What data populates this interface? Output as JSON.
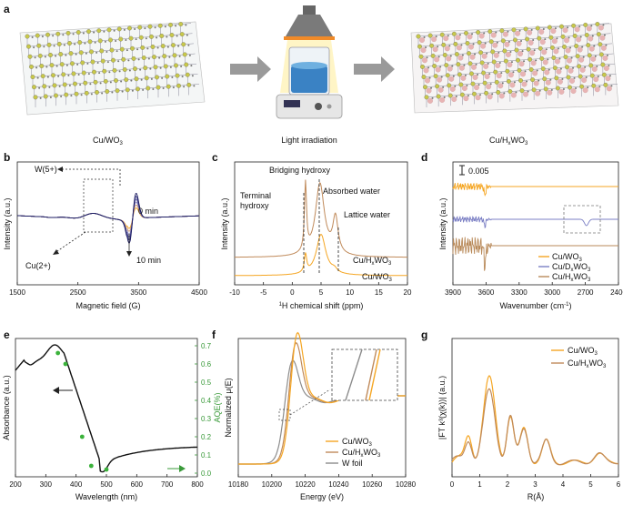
{
  "panels": {
    "a": {
      "label": "a",
      "left_caption": "Cu/WO",
      "left_caption_sub": "3",
      "middle_caption": "Light irradiation",
      "right_caption": "Cu/H",
      "right_caption_sub1": "x",
      "right_caption_mid": "WO",
      "right_caption_sub2": "3"
    },
    "b": {
      "label": "b",
      "xlabel": "Magnetic field (G)",
      "ylabel": "Intensity (a.u.)",
      "xticks": [
        "1500",
        "2500",
        "3500",
        "4500"
      ],
      "annot_w5": "W(5+)",
      "annot_cu2": "Cu(2+)",
      "annot_0min": "0 min",
      "annot_10min": "10 min"
    },
    "c": {
      "label": "c",
      "xlabel": "H chemical shift (ppm)",
      "xlabel_sup": "1",
      "ylabel": "Intensity (a.u.)",
      "xticks": [
        "-10",
        "-5",
        "0",
        "5",
        "10",
        "15",
        "20"
      ],
      "annot_bridging": "Bridging hydroxy",
      "annot_terminal1": "Terminal",
      "annot_terminal2": "hydroxy",
      "annot_absorbed": "Absorbed water",
      "annot_lattice": "Lattice water",
      "curve_hx": "Cu/H",
      "curve_hx_sub1": "x",
      "curve_hx_mid": "WO",
      "curve_hx_sub2": "3",
      "curve_wo": "Cu/WO",
      "curve_wo_sub": "3"
    },
    "d": {
      "label": "d",
      "xlabel": "Wavenumber (cm",
      "xlabel_sup": "-1",
      "xlabel_end": ")",
      "ylabel": "Intensity (a.u.)",
      "xticks": [
        "3900",
        "3600",
        "3300",
        "3000",
        "2700",
        "2400"
      ],
      "scale_bar": "0.005",
      "legend": [
        {
          "a": "Cu/WO",
          "sub": "3",
          "b": "",
          "sub2": "",
          "color": "#f5a623"
        },
        {
          "a": "Cu/D",
          "sub": "x",
          "b": "WO",
          "sub2": "3",
          "color": "#7b7fc4"
        },
        {
          "a": "Cu/H",
          "sub": "x",
          "b": "WO",
          "sub2": "3",
          "color": "#b98a5a"
        }
      ]
    },
    "e": {
      "label": "e",
      "xlabel": "Wavelength (nm)",
      "ylabel_left": "Absorbance (a.u.)",
      "ylabel_right": "AQE(%)",
      "xticks": [
        "200",
        "300",
        "400",
        "500",
        "600",
        "700",
        "800"
      ],
      "yticks_right": [
        "0.0",
        "0.1",
        "0.2",
        "0.3",
        "0.4",
        "0.5",
        "0.6",
        "0.7"
      ],
      "aqe_points": [
        {
          "wavelength": 340,
          "aqe": 0.66
        },
        {
          "wavelength": 365,
          "aqe": 0.6
        },
        {
          "wavelength": 420,
          "aqe": 0.2
        },
        {
          "wavelength": 450,
          "aqe": 0.04
        },
        {
          "wavelength": 500,
          "aqe": 0.02
        }
      ]
    },
    "f": {
      "label": "f",
      "xlabel": "Energy (eV)",
      "ylabel": "Normalized μ(E)",
      "xticks": [
        "10180",
        "10200",
        "10220",
        "10240",
        "10260",
        "10280"
      ],
      "legend": [
        {
          "a": "Cu/WO",
          "sub": "3",
          "b": "",
          "sub2": "",
          "color": "#f5a623"
        },
        {
          "a": "Cu/H",
          "sub": "x",
          "b": "WO",
          "sub2": "3",
          "color": "#c08a5a"
        },
        {
          "a": "W foil",
          "sub": "",
          "b": "",
          "sub2": "",
          "color": "#8c8c8c"
        }
      ]
    },
    "g": {
      "label": "g",
      "xlabel": "R(Å)",
      "ylabel": "|FT k³(χ(k))| (a.u.)",
      "xticks": [
        "0",
        "1",
        "2",
        "3",
        "4",
        "5",
        "6"
      ],
      "legend": [
        {
          "a": "Cu/WO",
          "sub": "3",
          "b": "",
          "sub2": "",
          "color": "#f5a623"
        },
        {
          "a": "Cu/H",
          "sub": "x",
          "b": "WO",
          "sub2": "3",
          "color": "#c08a5a"
        }
      ]
    }
  }
}
